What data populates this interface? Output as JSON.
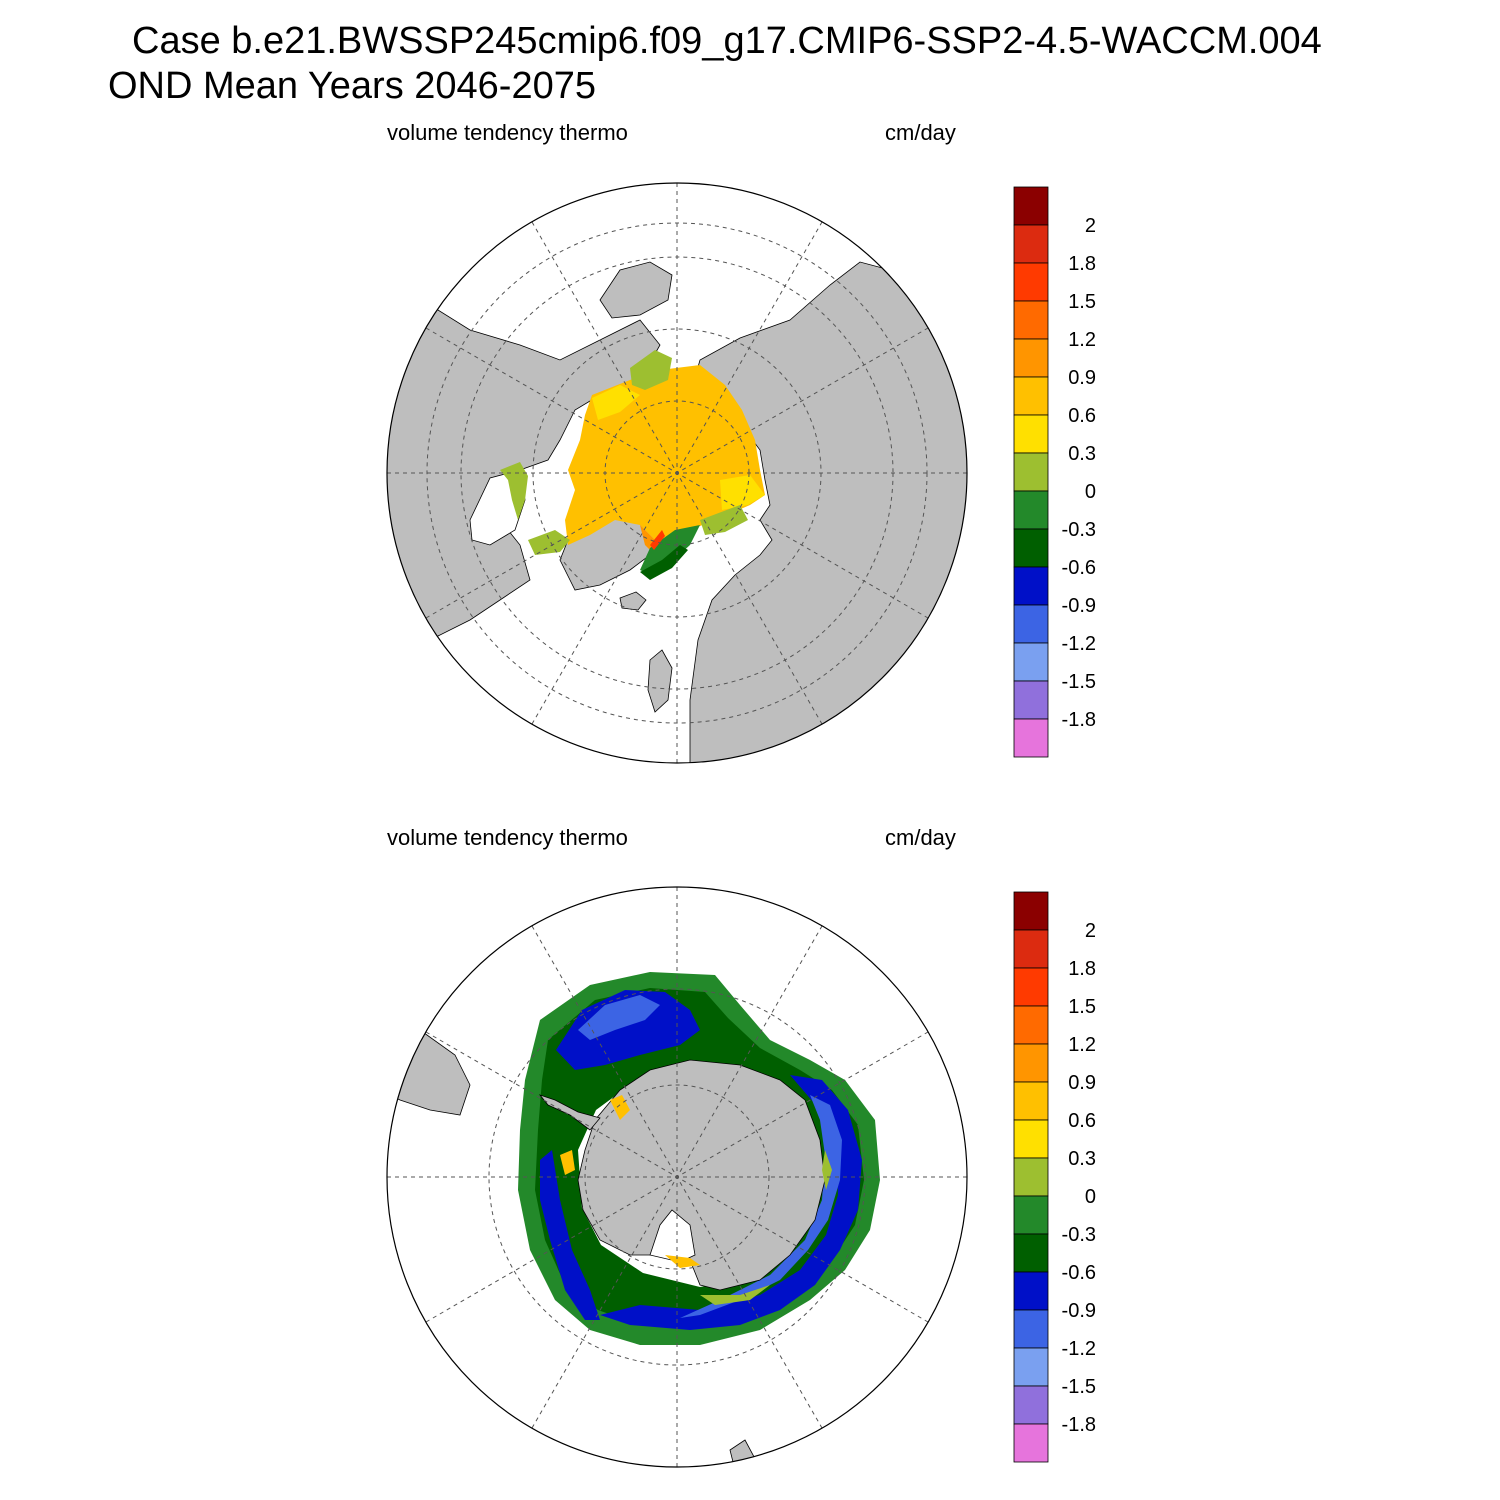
{
  "header": {
    "title_line1": "Case b.e21.BWSSP245cmip6.f09_g17.CMIP6-SSP2-4.5-WACCM.004",
    "title_line2": "OND Mean   Years 2046-2075"
  },
  "panels": [
    {
      "id": "north",
      "variable_label": "volume tendency thermo",
      "units_label": "cm/day"
    },
    {
      "id": "south",
      "variable_label": "volume tendency thermo",
      "units_label": "cm/day"
    }
  ],
  "colorbar": {
    "labels": [
      "2",
      "1.8",
      "1.5",
      "1.2",
      "0.9",
      "0.6",
      "0.3",
      "0",
      "-0.3",
      "-0.6",
      "-0.9",
      "-1.2",
      "-1.5",
      "-1.8"
    ],
    "colors": [
      "#8b0000",
      "#dc2b10",
      "#ff3a00",
      "#ff6a00",
      "#ff9500",
      "#ffc000",
      "#ffe000",
      "#9dbf30",
      "#23892a",
      "#005f00",
      "#0010c8",
      "#3c64e4",
      "#7aa0f0",
      "#9070dc",
      "#e674dc"
    ]
  },
  "map_colors": {
    "land": "#bebebe",
    "ocean_no_ice": "#ffffff",
    "grid": "#555555"
  }
}
